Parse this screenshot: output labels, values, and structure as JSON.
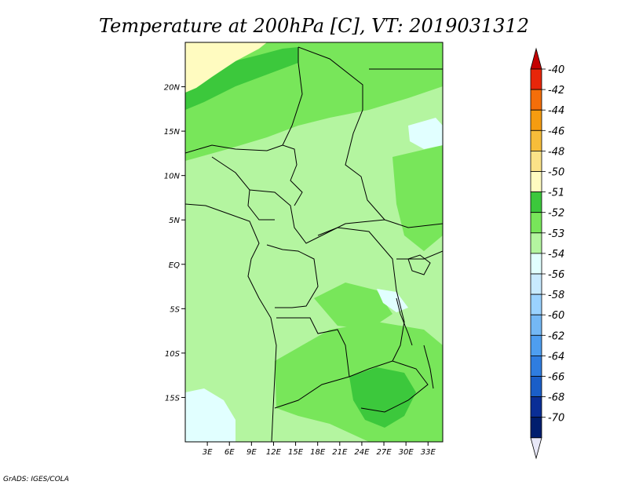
{
  "chart_data": {
    "type": "heatmap",
    "title": "Temperature at 200hPa [C], VT: 2019031312",
    "xlabel": "",
    "ylabel": "",
    "x_ticks": [
      "3E",
      "6E",
      "9E",
      "12E",
      "15E",
      "18E",
      "21E",
      "24E",
      "27E",
      "30E",
      "33E"
    ],
    "y_ticks": [
      "20N",
      "15N",
      "10N",
      "5N",
      "EQ",
      "5S",
      "10S",
      "15S"
    ],
    "xlim": [
      0,
      35
    ],
    "ylim": [
      -20,
      25
    ],
    "grid": false,
    "legend": "right",
    "colorbar": {
      "labels": [
        "-40",
        "-42",
        "-44",
        "-46",
        "-48",
        "-50",
        "-51",
        "-52",
        "-53",
        "-54",
        "-56",
        "-58",
        "-60",
        "-62",
        "-64",
        "-66",
        "-68",
        "-70"
      ],
      "colors": [
        "#c40000",
        "#e8260a",
        "#f46e0a",
        "#f59c10",
        "#f7bd3a",
        "#fbe288",
        "#fffbc0",
        "#3cc83c",
        "#78e65a",
        "#b4f5a0",
        "#e1ffff",
        "#c8eaff",
        "#9ad2ff",
        "#74b8f5",
        "#4e9ef0",
        "#2f7de0",
        "#1a5ec8",
        "#0a2e96",
        "#001e6e",
        "#e8e8f8"
      ]
    },
    "approx_values": {
      "dominant_temperature_c": -53,
      "north_west_band_c": -50,
      "south_west_corner_c": -54,
      "south_east_patch_c": -52
    },
    "credit": "GrADS: IGES/COLA"
  }
}
